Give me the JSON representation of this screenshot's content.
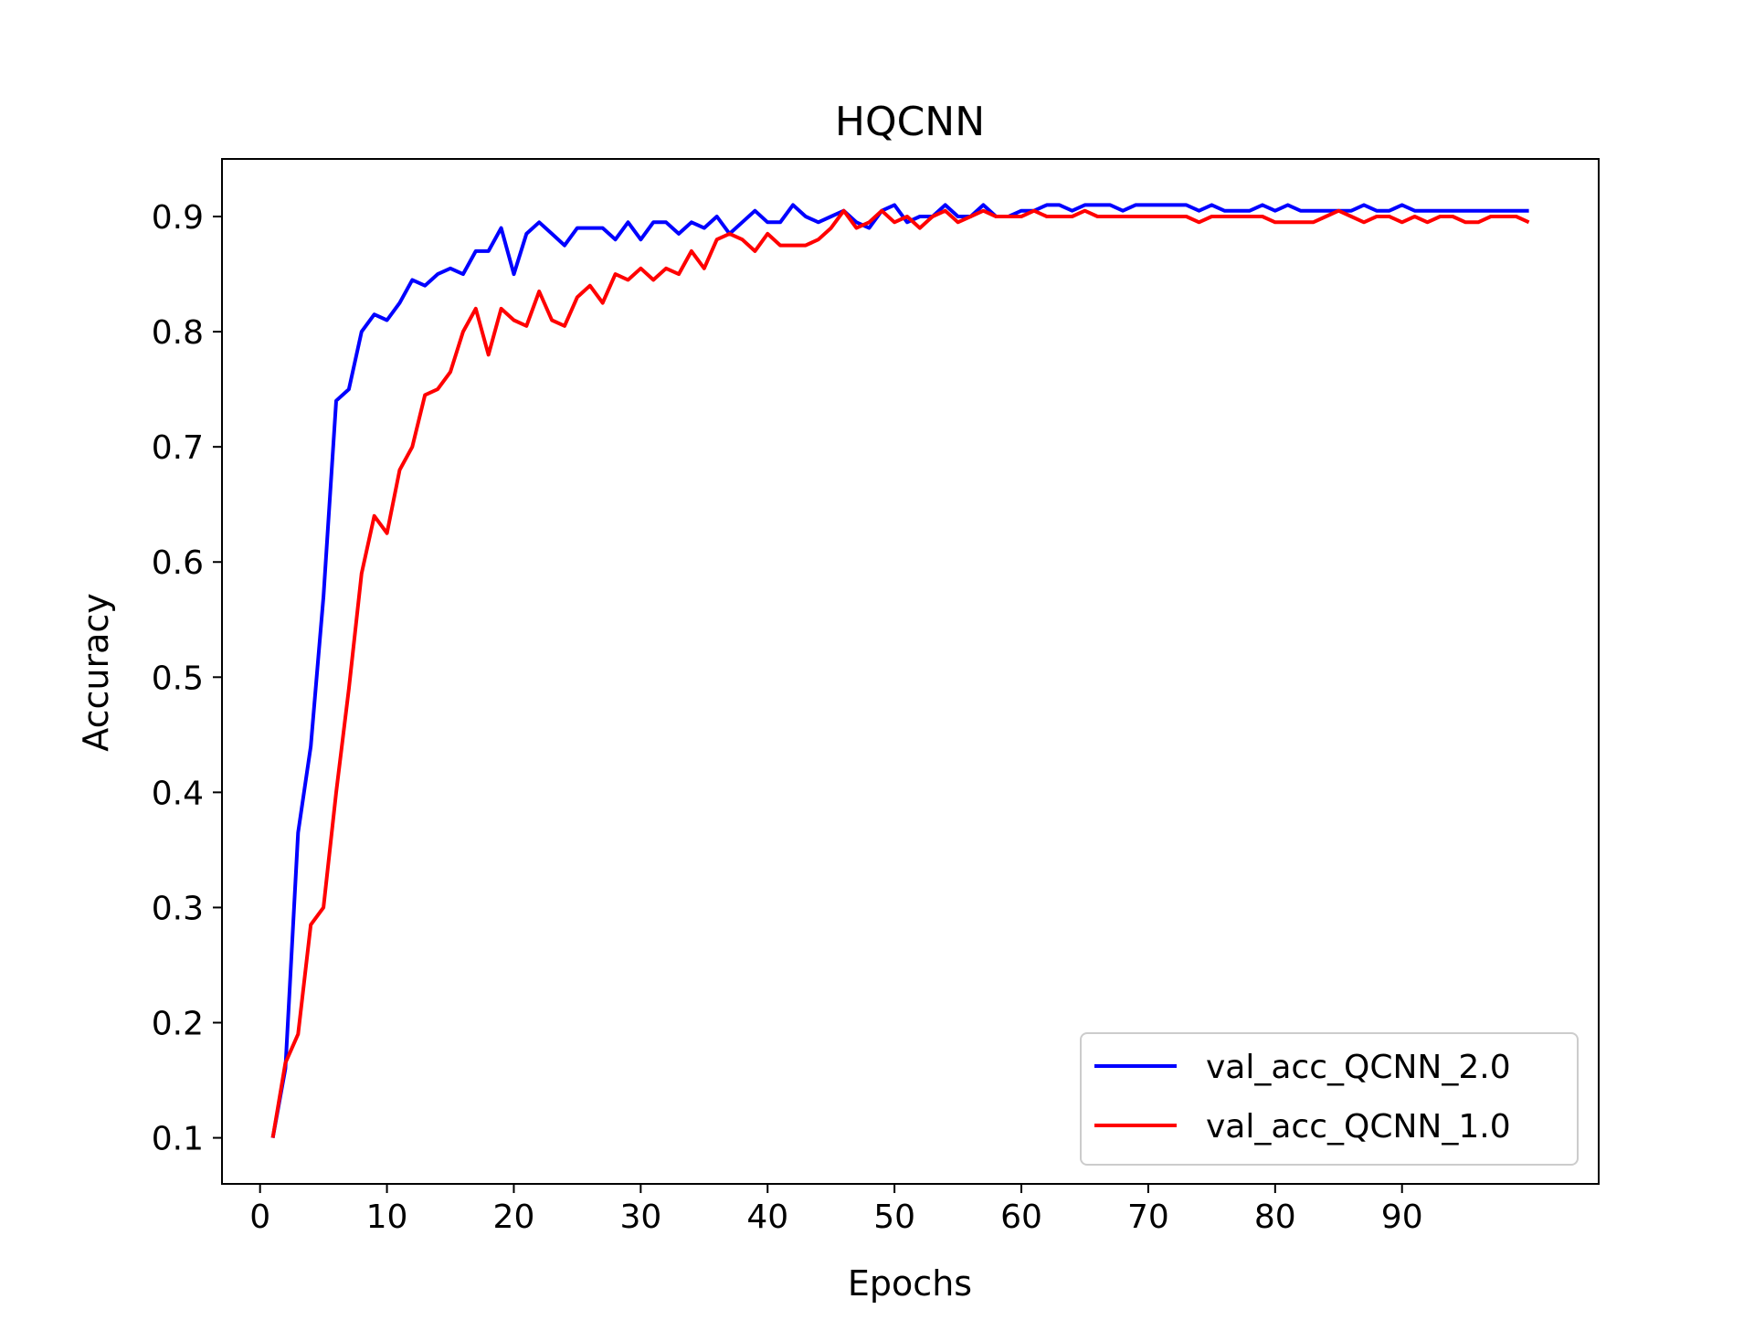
{
  "chart_data": {
    "type": "line",
    "title": "HQCNN",
    "xlabel": "Epochs",
    "ylabel": "Accuracy",
    "xlim": [
      -3,
      105.5
    ],
    "ylim": [
      0.06,
      0.95
    ],
    "xticks": [
      0,
      10,
      20,
      30,
      40,
      50,
      60,
      70,
      80,
      90
    ],
    "yticks": [
      0.1,
      0.2,
      0.3,
      0.4,
      0.5,
      0.6,
      0.7,
      0.8,
      0.9
    ],
    "grid": false,
    "legend_position": "lower-right",
    "x": [
      1,
      2,
      3,
      4,
      5,
      6,
      7,
      8,
      9,
      10,
      11,
      12,
      13,
      14,
      15,
      16,
      17,
      18,
      19,
      20,
      21,
      22,
      23,
      24,
      25,
      26,
      27,
      28,
      29,
      30,
      31,
      32,
      33,
      34,
      35,
      36,
      37,
      38,
      39,
      40,
      41,
      42,
      43,
      44,
      45,
      46,
      47,
      48,
      49,
      50,
      51,
      52,
      53,
      54,
      55,
      56,
      57,
      58,
      59,
      60,
      61,
      62,
      63,
      64,
      65,
      66,
      67,
      68,
      69,
      70,
      71,
      72,
      73,
      74,
      75,
      76,
      77,
      78,
      79,
      80,
      81,
      82,
      83,
      84,
      85,
      86,
      87,
      88,
      89,
      90,
      91,
      92,
      93,
      94,
      95,
      96,
      97,
      98,
      99,
      100
    ],
    "series": [
      {
        "name": "val_acc_QCNN_2.0",
        "color": "#0000ff",
        "values": [
          0.1,
          0.16,
          0.365,
          0.44,
          0.57,
          0.74,
          0.75,
          0.8,
          0.815,
          0.81,
          0.825,
          0.845,
          0.84,
          0.85,
          0.855,
          0.85,
          0.87,
          0.87,
          0.89,
          0.85,
          0.885,
          0.895,
          0.885,
          0.875,
          0.89,
          0.89,
          0.89,
          0.88,
          0.895,
          0.88,
          0.895,
          0.895,
          0.885,
          0.895,
          0.89,
          0.9,
          0.885,
          0.895,
          0.905,
          0.895,
          0.895,
          0.91,
          0.9,
          0.895,
          0.9,
          0.905,
          0.895,
          0.89,
          0.905,
          0.91,
          0.895,
          0.9,
          0.9,
          0.91,
          0.9,
          0.9,
          0.91,
          0.9,
          0.9,
          0.905,
          0.905,
          0.91,
          0.91,
          0.905,
          0.91,
          0.91,
          0.91,
          0.905,
          0.91,
          0.91,
          0.91,
          0.91,
          0.91,
          0.905,
          0.91,
          0.905,
          0.905,
          0.905,
          0.91,
          0.905,
          0.91,
          0.905,
          0.905,
          0.905,
          0.905,
          0.905,
          0.91,
          0.905,
          0.905,
          0.91,
          0.905,
          0.905,
          0.905,
          0.905,
          0.905,
          0.905,
          0.905,
          0.905,
          0.905,
          0.905
        ]
      },
      {
        "name": "val_acc_QCNN_1.0",
        "color": "#ff0000",
        "values": [
          0.1,
          0.165,
          0.19,
          0.285,
          0.3,
          0.4,
          0.49,
          0.59,
          0.64,
          0.625,
          0.68,
          0.7,
          0.745,
          0.75,
          0.765,
          0.8,
          0.82,
          0.78,
          0.82,
          0.81,
          0.805,
          0.835,
          0.81,
          0.805,
          0.83,
          0.84,
          0.825,
          0.85,
          0.845,
          0.855,
          0.845,
          0.855,
          0.85,
          0.87,
          0.855,
          0.88,
          0.885,
          0.88,
          0.87,
          0.885,
          0.875,
          0.875,
          0.875,
          0.88,
          0.89,
          0.905,
          0.89,
          0.895,
          0.905,
          0.895,
          0.9,
          0.89,
          0.9,
          0.905,
          0.895,
          0.9,
          0.905,
          0.9,
          0.9,
          0.9,
          0.905,
          0.9,
          0.9,
          0.9,
          0.905,
          0.9,
          0.9,
          0.9,
          0.9,
          0.9,
          0.9,
          0.9,
          0.9,
          0.895,
          0.9,
          0.9,
          0.9,
          0.9,
          0.9,
          0.895,
          0.895,
          0.895,
          0.895,
          0.9,
          0.905,
          0.9,
          0.895,
          0.9,
          0.9,
          0.895,
          0.9,
          0.895,
          0.9,
          0.9,
          0.895,
          0.895,
          0.9,
          0.9,
          0.9,
          0.895
        ]
      }
    ]
  }
}
